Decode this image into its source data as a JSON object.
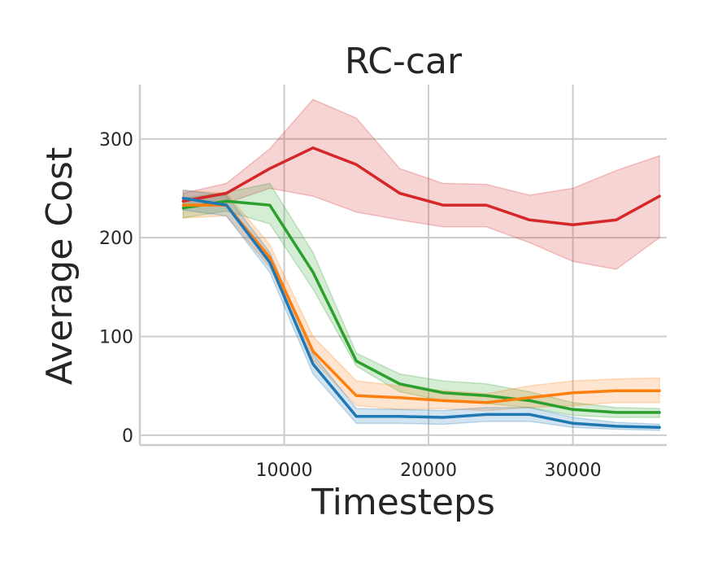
{
  "chart_data": {
    "type": "line",
    "title": "RC-car",
    "xlabel": "Timesteps",
    "ylabel": "Average Cost",
    "xlim": [
      0,
      36500
    ],
    "ylim": [
      -10,
      355
    ],
    "xticks": [
      10000,
      20000,
      30000
    ],
    "xtick_labels": [
      "10000",
      "20000",
      "30000"
    ],
    "yticks": [
      0,
      100,
      200,
      300
    ],
    "ytick_labels": [
      "0",
      "100",
      "200",
      "300"
    ],
    "grid": true,
    "legend": "none",
    "x": [
      3000,
      6000,
      9000,
      12000,
      15000,
      18000,
      21000,
      24000,
      27000,
      30000,
      33000,
      36000
    ],
    "series": [
      {
        "color": "#d62728",
        "values": [
          237,
          245,
          270,
          291,
          274,
          245,
          233,
          233,
          218,
          213,
          218,
          242
        ],
        "lower": [
          230,
          235,
          250,
          242,
          226,
          218,
          211,
          211,
          195,
          176,
          168,
          200
        ],
        "upper": [
          245,
          255,
          290,
          340,
          321,
          270,
          255,
          254,
          243,
          250,
          268,
          283
        ]
      },
      {
        "color": "#2ca02c",
        "values": [
          230,
          237,
          233,
          165,
          75,
          52,
          43,
          40,
          35,
          26,
          23,
          23
        ],
        "lower": [
          220,
          227,
          214,
          148,
          70,
          44,
          35,
          32,
          28,
          20,
          18,
          18
        ],
        "upper": [
          240,
          246,
          255,
          185,
          83,
          62,
          55,
          52,
          44,
          33,
          28,
          27
        ]
      },
      {
        "color": "#ff7f0e",
        "values": [
          233,
          233,
          180,
          85,
          40,
          38,
          35,
          33,
          38,
          43,
          45,
          45
        ],
        "lower": [
          220,
          222,
          170,
          76,
          30,
          26,
          27,
          25,
          28,
          30,
          33,
          33
        ],
        "upper": [
          248,
          245,
          193,
          100,
          55,
          50,
          45,
          42,
          50,
          55,
          57,
          58
        ]
      },
      {
        "color": "#1f77b4",
        "values": [
          240,
          233,
          175,
          72,
          19,
          19,
          18,
          21,
          21,
          12,
          9,
          8
        ],
        "lower": [
          228,
          222,
          165,
          62,
          12,
          12,
          11,
          14,
          14,
          8,
          6,
          5
        ],
        "upper": [
          248,
          243,
          185,
          82,
          27,
          26,
          25,
          28,
          28,
          18,
          13,
          11
        ]
      }
    ]
  }
}
